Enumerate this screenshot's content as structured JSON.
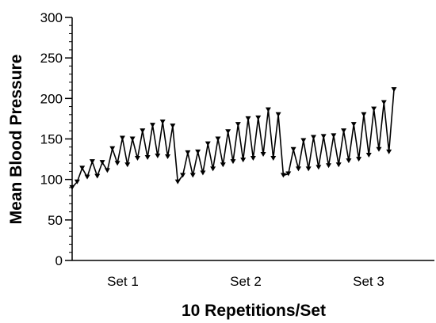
{
  "chart_data": {
    "type": "line",
    "title": "",
    "xlabel": "10 Repetitions/Set",
    "ylabel": "Mean Blood Pressure",
    "ylim": [
      0,
      300
    ],
    "y_ticks": [
      "0",
      "50",
      "100",
      "150",
      "200",
      "250",
      "300"
    ],
    "x_group_labels": [
      "Set 1",
      "Set 2",
      "Set 3"
    ],
    "grid": false,
    "legend": "none",
    "line_color": "#000000",
    "marker": "down-triangle",
    "values": [
      90,
      97,
      114,
      103,
      122,
      104,
      121,
      111,
      138,
      120,
      151,
      118,
      150,
      126,
      160,
      127,
      167,
      129,
      171,
      128,
      166,
      97,
      105,
      133,
      105,
      134,
      108,
      144,
      113,
      150,
      118,
      159,
      122,
      168,
      124,
      175,
      126,
      176,
      131,
      186,
      126,
      180,
      105,
      107,
      137,
      113,
      148,
      113,
      152,
      115,
      153,
      117,
      154,
      118,
      160,
      123,
      168,
      125,
      180,
      130,
      187,
      137,
      195,
      134,
      211
    ]
  }
}
